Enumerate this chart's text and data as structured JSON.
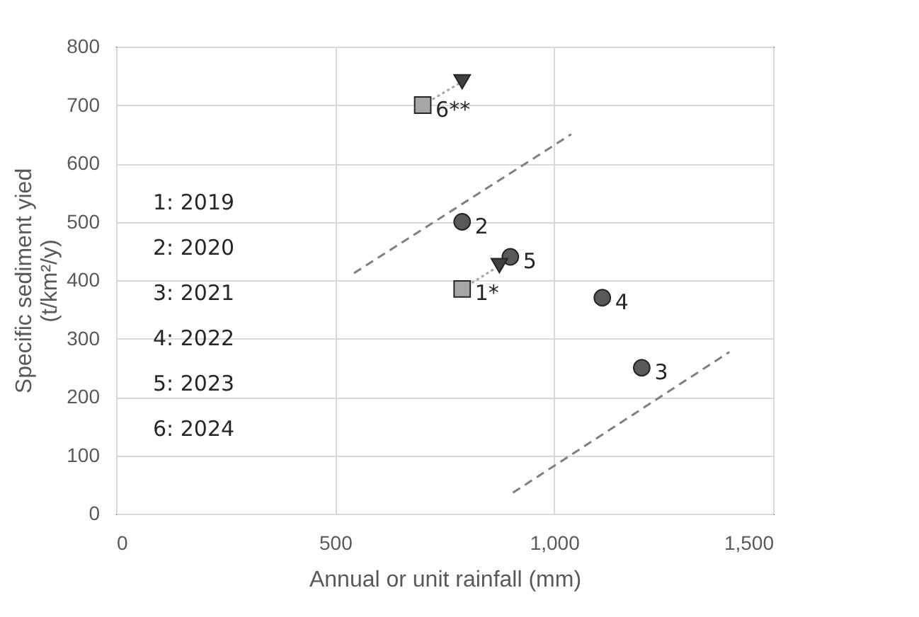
{
  "chart_data": {
    "type": "scatter",
    "xlabel": "Annual or unit rainfall (mm)",
    "ylabel": "Specific sediment yied\n(t/km²/y)",
    "xlim": [
      0,
      1500
    ],
    "ylim": [
      0,
      800
    ],
    "xticks": [
      0,
      500,
      {
        "value": 1000,
        "label": "1,000"
      },
      {
        "value": 1500,
        "label": "1,500"
      }
    ],
    "yticks": [
      0,
      100,
      200,
      300,
      400,
      500,
      600,
      700,
      800
    ],
    "grid": true,
    "legend": false,
    "series": [
      {
        "type": "line",
        "line_style": "dashed",
        "marker": "none",
        "color": "#808080",
        "x": [
          543,
          1039
        ],
        "values": [
          412,
          650
        ]
      },
      {
        "type": "line",
        "line_style": "dashed",
        "marker": "none",
        "color": "#808080",
        "x": [
          906,
          1400
        ],
        "values": [
          36,
          277
        ]
      },
      {
        "type": "line",
        "line_style": "dotted",
        "marker": "none",
        "color": "#a6a6a6",
        "x": [
          700,
          790
        ],
        "values": [
          700,
          740
        ]
      },
      {
        "type": "line",
        "line_style": "dotted",
        "marker": "none",
        "color": "#a6a6a6",
        "x": [
          790,
          875
        ],
        "values": [
          385,
          425
        ]
      },
      {
        "type": "scatter",
        "marker": "circle",
        "color": "#595959",
        "x": [
          790,
          1200,
          1110,
          900
        ],
        "values": [
          500,
          250,
          370,
          440
        ]
      },
      {
        "type": "scatter",
        "marker": "square",
        "color": "#a6a6a6",
        "x": [
          790,
          700
        ],
        "values": [
          385,
          700
        ]
      },
      {
        "type": "scatter",
        "marker": "triangle",
        "color": "#404040",
        "x": [
          790,
          875
        ],
        "values": [
          740,
          425
        ]
      }
    ],
    "annotations": [
      {
        "text": "2",
        "x": 790,
        "y": 500
      },
      {
        "text": "3",
        "x": 1200,
        "y": 250
      },
      {
        "text": "4",
        "x": 1110,
        "y": 370
      },
      {
        "text": "5",
        "x": 900,
        "y": 440
      },
      {
        "text": "1*",
        "x": 790,
        "y": 385
      },
      {
        "text": "6**",
        "x": 700,
        "y": 700
      },
      "1: 2019",
      "2: 2020",
      "3: 2021",
      "4: 2022",
      "5: 2023",
      "6: 2024"
    ]
  }
}
